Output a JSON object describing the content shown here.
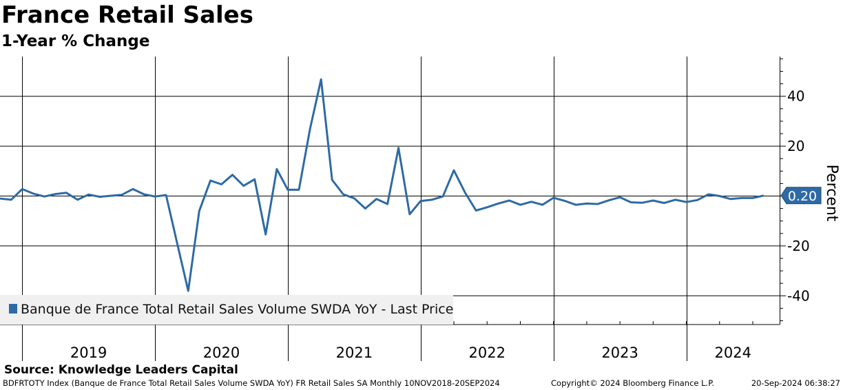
{
  "title": "France Retail Sales",
  "subtitle": "1-Year % Change",
  "chart_data": {
    "type": "line",
    "title": "France Retail Sales",
    "subtitle": "1-Year % Change",
    "ylabel": "Percent",
    "ylim": [
      -52,
      56
    ],
    "yticks": [
      40,
      20,
      -20,
      -40
    ],
    "year_labels": [
      "2019",
      "2020",
      "2021",
      "2022",
      "2023",
      "2024"
    ],
    "last_value_label": "0.20",
    "line_color": "#2e6aa5",
    "legend_position": "bottom-left",
    "series": [
      {
        "name": "Banque de France Total Retail Sales Volume SWDA YoY - Last Price",
        "x": [
          2018.833,
          2018.917,
          2019.0,
          2019.083,
          2019.167,
          2019.25,
          2019.333,
          2019.417,
          2019.5,
          2019.583,
          2019.667,
          2019.75,
          2019.833,
          2019.917,
          2020.0,
          2020.083,
          2020.167,
          2020.25,
          2020.333,
          2020.417,
          2020.5,
          2020.583,
          2020.667,
          2020.75,
          2020.833,
          2020.917,
          2021.0,
          2021.083,
          2021.167,
          2021.25,
          2021.333,
          2021.417,
          2021.5,
          2021.583,
          2021.667,
          2021.75,
          2021.833,
          2021.917,
          2022.0,
          2022.083,
          2022.167,
          2022.25,
          2022.333,
          2022.417,
          2022.5,
          2022.583,
          2022.667,
          2022.75,
          2022.833,
          2022.917,
          2023.0,
          2023.083,
          2023.167,
          2023.25,
          2023.333,
          2023.417,
          2023.5,
          2023.583,
          2023.667,
          2023.75,
          2023.833,
          2023.917,
          2024.0,
          2024.083,
          2024.167,
          2024.25,
          2024.333,
          2024.417,
          2024.5,
          2024.583
        ],
        "values": [
          -1,
          -1.5,
          2.8,
          1,
          -0.2,
          0.8,
          1.3,
          -1.5,
          0.6,
          -0.3,
          0.1,
          0.5,
          2.8,
          0.7,
          -0.2,
          0.4,
          -19,
          -38,
          -6,
          6.2,
          4.7,
          8.5,
          4.1,
          6.7,
          -15.4,
          10.8,
          2.5,
          2.5,
          27,
          46.8,
          6.5,
          0.7,
          -0.9,
          -5,
          -1.2,
          -3.2,
          19.3,
          -7.3,
          -2,
          -1.5,
          -0.2,
          10.3,
          1.5,
          -5.8,
          -4.5,
          -3,
          -1.8,
          -3.5,
          -2.3,
          -3.5,
          -0.7,
          -1.9,
          -3.5,
          -3,
          -3.2,
          -1.7,
          -0.5,
          -2.5,
          -2.7,
          -1.8,
          -2.8,
          -1.5,
          -2.4,
          -1.6,
          0.7,
          0,
          -1.2,
          -0.8,
          -0.8,
          0.2
        ]
      }
    ]
  },
  "source": "Source: Knowledge Leaders Capital",
  "footer": {
    "left": "BDFRTOTY Index (Banque de France Total Retail Sales Volume SWDA YoY) FR Retail Sales SA  Monthly 10NOV2018-20SEP2024",
    "middle": "Copyright© 2024 Bloomberg Finance L.P.",
    "right": "20-Sep-2024 06:38:27"
  }
}
